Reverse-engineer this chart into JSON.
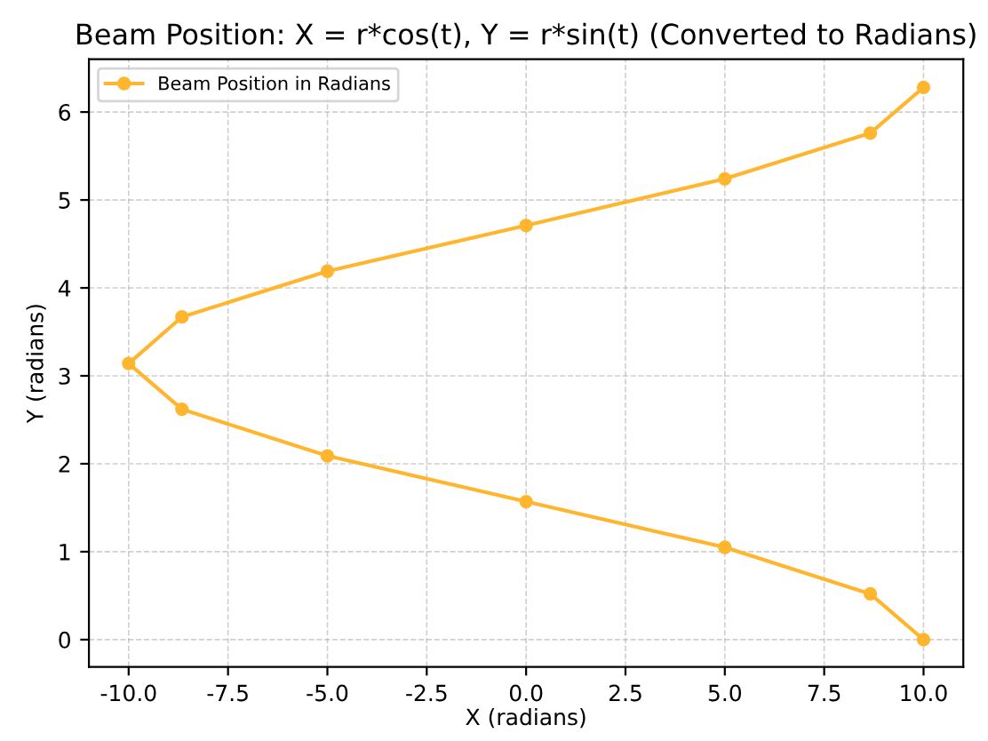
{
  "chart_data": {
    "type": "line",
    "title": "Beam Position: X = r*cos(t), Y = r*sin(t) (Converted to Radians)",
    "xlabel": "X (radians)",
    "ylabel": "Y (radians)",
    "series": [
      {
        "name": "Beam Position in Radians",
        "color": "#ffb62e",
        "x": [
          10,
          8.66,
          5,
          0,
          -5,
          -8.66,
          -10,
          -8.66,
          -5,
          0,
          5,
          8.66,
          10
        ],
        "values": [
          0,
          0.52,
          1.05,
          1.57,
          2.09,
          2.62,
          3.14,
          3.67,
          4.19,
          4.71,
          5.24,
          5.76,
          6.28
        ]
      }
    ],
    "xlim": [
      -11,
      11
    ],
    "ylim": [
      -0.31,
      6.6
    ],
    "xticks": [
      {
        "value": -10,
        "label": "-10.0"
      },
      -7.5,
      {
        "value": -5,
        "label": "-5.0"
      },
      -2.5,
      {
        "value": 0,
        "label": "0.0"
      },
      2.5,
      {
        "value": 5,
        "label": "5.0"
      },
      7.5,
      {
        "value": 10,
        "label": "10.0"
      }
    ],
    "yticks": [
      0,
      1,
      2,
      3,
      4,
      5,
      6
    ],
    "grid": true,
    "legend": "top left",
    "marker": "circle",
    "line_style": "solid"
  }
}
